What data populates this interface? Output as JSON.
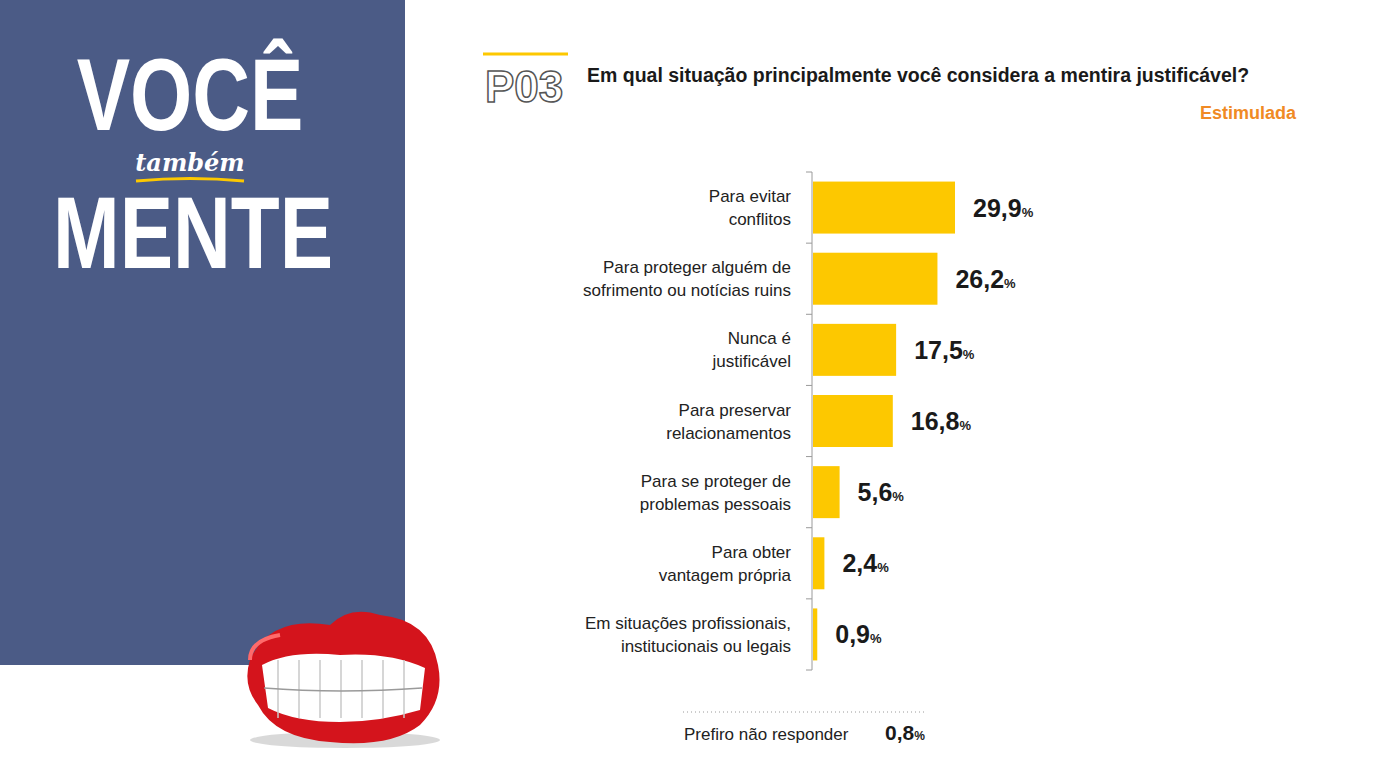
{
  "header": {
    "title_lines": [
      "VOCÊ",
      "também",
      "MENTE"
    ],
    "question_code": "P03"
  },
  "chart_data": {
    "type": "bar",
    "orientation": "horizontal",
    "title": "Em qual situação principalmente você considera a mentira justificável?",
    "subtitle": "Estimulada",
    "categories": [
      "Para evitar conflitos",
      "Para proteger alguém de sofrimento ou notícias ruins",
      "Nunca é justificável",
      "Para preservar relacionamentos",
      "Para se proteger de problemas pessoais",
      "Para obter vantagem própria",
      "Em situações profissionais, institucionais ou legais"
    ],
    "values": [
      29.9,
      26.2,
      17.5,
      16.8,
      5.6,
      2.4,
      0.9
    ],
    "value_labels": [
      "29,9%",
      "26,2%",
      "17,5%",
      "16,8%",
      "5,6%",
      "2,4%",
      "0,9%"
    ],
    "color": "#fdc800",
    "xlim": [
      0,
      30
    ],
    "data_labels": true,
    "tick_labels": "y",
    "grid": false,
    "annotations": [
      {
        "text": "Prefiro não responder",
        "value": 0.8,
        "value_label": "0,8%"
      }
    ]
  }
}
